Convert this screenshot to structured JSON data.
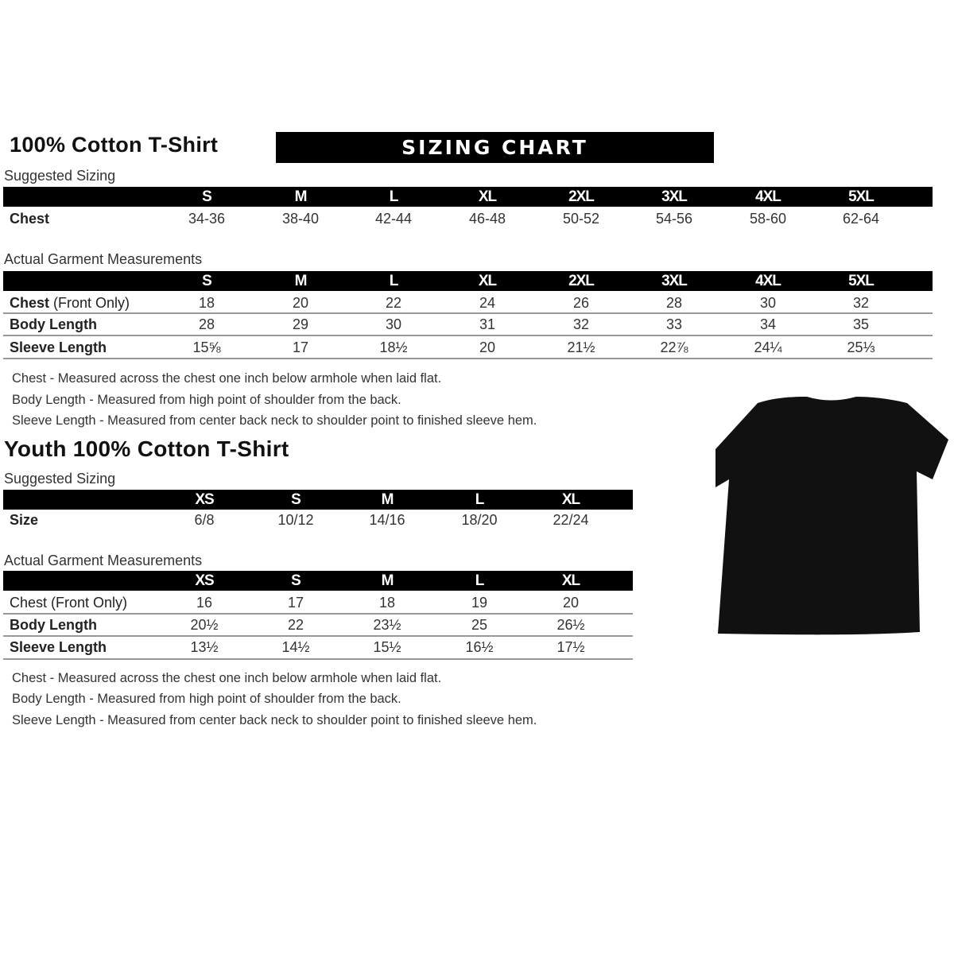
{
  "adult": {
    "title": "100% Cotton T-Shirt",
    "banner": "SIZING CHART",
    "suggested": {
      "label": "Suggested Sizing",
      "sizes": [
        "S",
        "M",
        "L",
        "XL",
        "2XL",
        "3XL",
        "4XL",
        "5XL"
      ],
      "rows": [
        {
          "label": "Chest",
          "values": [
            "34-36",
            "38-40",
            "42-44",
            "46-48",
            "50-52",
            "54-56",
            "58-60",
            "62-64"
          ]
        }
      ]
    },
    "actual": {
      "label": "Actual Garment Measurements",
      "sizes": [
        "S",
        "M",
        "L",
        "XL",
        "2XL",
        "3XL",
        "4XL",
        "5XL"
      ],
      "rows": [
        {
          "label": "Chest",
          "label_suffix": " (Front Only)",
          "values": [
            "18",
            "20",
            "22",
            "24",
            "26",
            "28",
            "30",
            "32"
          ]
        },
        {
          "label": "Body Length",
          "values": [
            "28",
            "29",
            "30",
            "31",
            "32",
            "33",
            "34",
            "35"
          ]
        },
        {
          "label": "Sleeve Length",
          "values": [
            "15⅝",
            "17",
            "18½",
            "20",
            "21½",
            "22⅞",
            "24¼",
            "25⅓"
          ]
        }
      ]
    },
    "notes": [
      "Chest - Measured across the chest one inch below armhole when laid flat.",
      "Body Length - Measured from high point of shoulder from the back.",
      "Sleeve Length - Measured from center back neck to shoulder point to finished sleeve hem."
    ]
  },
  "youth": {
    "title": "Youth 100% Cotton T-Shirt",
    "suggested": {
      "label": "Suggested Sizing",
      "sizes": [
        "XS",
        "S",
        "M",
        "L",
        "XL"
      ],
      "rows": [
        {
          "label": "Size",
          "values": [
            "6/8",
            "10/12",
            "14/16",
            "18/20",
            "22/24"
          ]
        }
      ]
    },
    "actual": {
      "label": "Actual Garment Measurements",
      "sizes": [
        "XS",
        "S",
        "M",
        "L",
        "XL"
      ],
      "rows": [
        {
          "label": "Chest (Front Only)",
          "values": [
            "16",
            "17",
            "18",
            "19",
            "20"
          ]
        },
        {
          "label": "Body Length",
          "values": [
            "20½",
            "22",
            "23½",
            "25",
            "26½"
          ]
        },
        {
          "label": "Sleeve Length",
          "values": [
            "13½",
            "14½",
            "15½",
            "16½",
            "17½"
          ]
        }
      ]
    },
    "notes": [
      "Chest - Measured across the chest one inch below armhole when laid flat.",
      "Body Length - Measured from high point of shoulder from the back.",
      "Sleeve Length - Measured from center back neck to shoulder point to finished sleeve hem."
    ]
  },
  "tshirt_color": "#111111"
}
